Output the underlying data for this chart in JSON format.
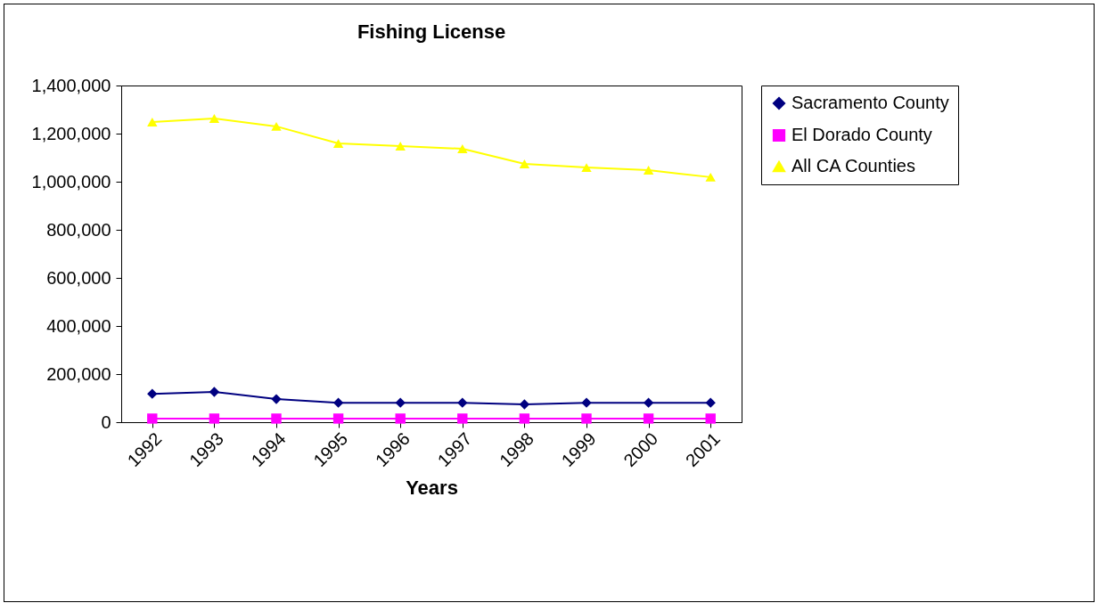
{
  "chart_data": {
    "type": "line",
    "title": "Fishing License",
    "xlabel": "Years",
    "categories": [
      "1992",
      "1993",
      "1994",
      "1995",
      "1996",
      "1997",
      "1998",
      "1999",
      "2000",
      "2001"
    ],
    "series": [
      {
        "name": "Sacramento County",
        "color": "#000080",
        "marker": "diamond",
        "values": [
          118000,
          126000,
          96000,
          81000,
          81000,
          81000,
          74000,
          81000,
          81000,
          81000
        ]
      },
      {
        "name": "El Dorado  County",
        "color": "#ff00ff",
        "marker": "square",
        "values": [
          15000,
          15000,
          15000,
          15000,
          15000,
          15000,
          15000,
          15000,
          15000,
          15000
        ]
      },
      {
        "name": "All CA Counties",
        "color": "#ffff00",
        "marker": "triangle",
        "values": [
          1248000,
          1263000,
          1230000,
          1159000,
          1148000,
          1137000,
          1074000,
          1059000,
          1048000,
          1019000
        ]
      }
    ],
    "ylim": [
      0,
      1400000
    ],
    "yticks": [
      {
        "value": 0,
        "label": "0"
      },
      {
        "value": 200000,
        "label": "200,000"
      },
      {
        "value": 400000,
        "label": "400,000"
      },
      {
        "value": 600000,
        "label": "600,000"
      },
      {
        "value": 800000,
        "label": "800,000"
      },
      {
        "value": 1000000,
        "label": "1,000,000"
      },
      {
        "value": 1200000,
        "label": "1,200,000"
      },
      {
        "value": 1400000,
        "label": "1,400,000"
      }
    ],
    "grid": false,
    "legend": "right"
  }
}
